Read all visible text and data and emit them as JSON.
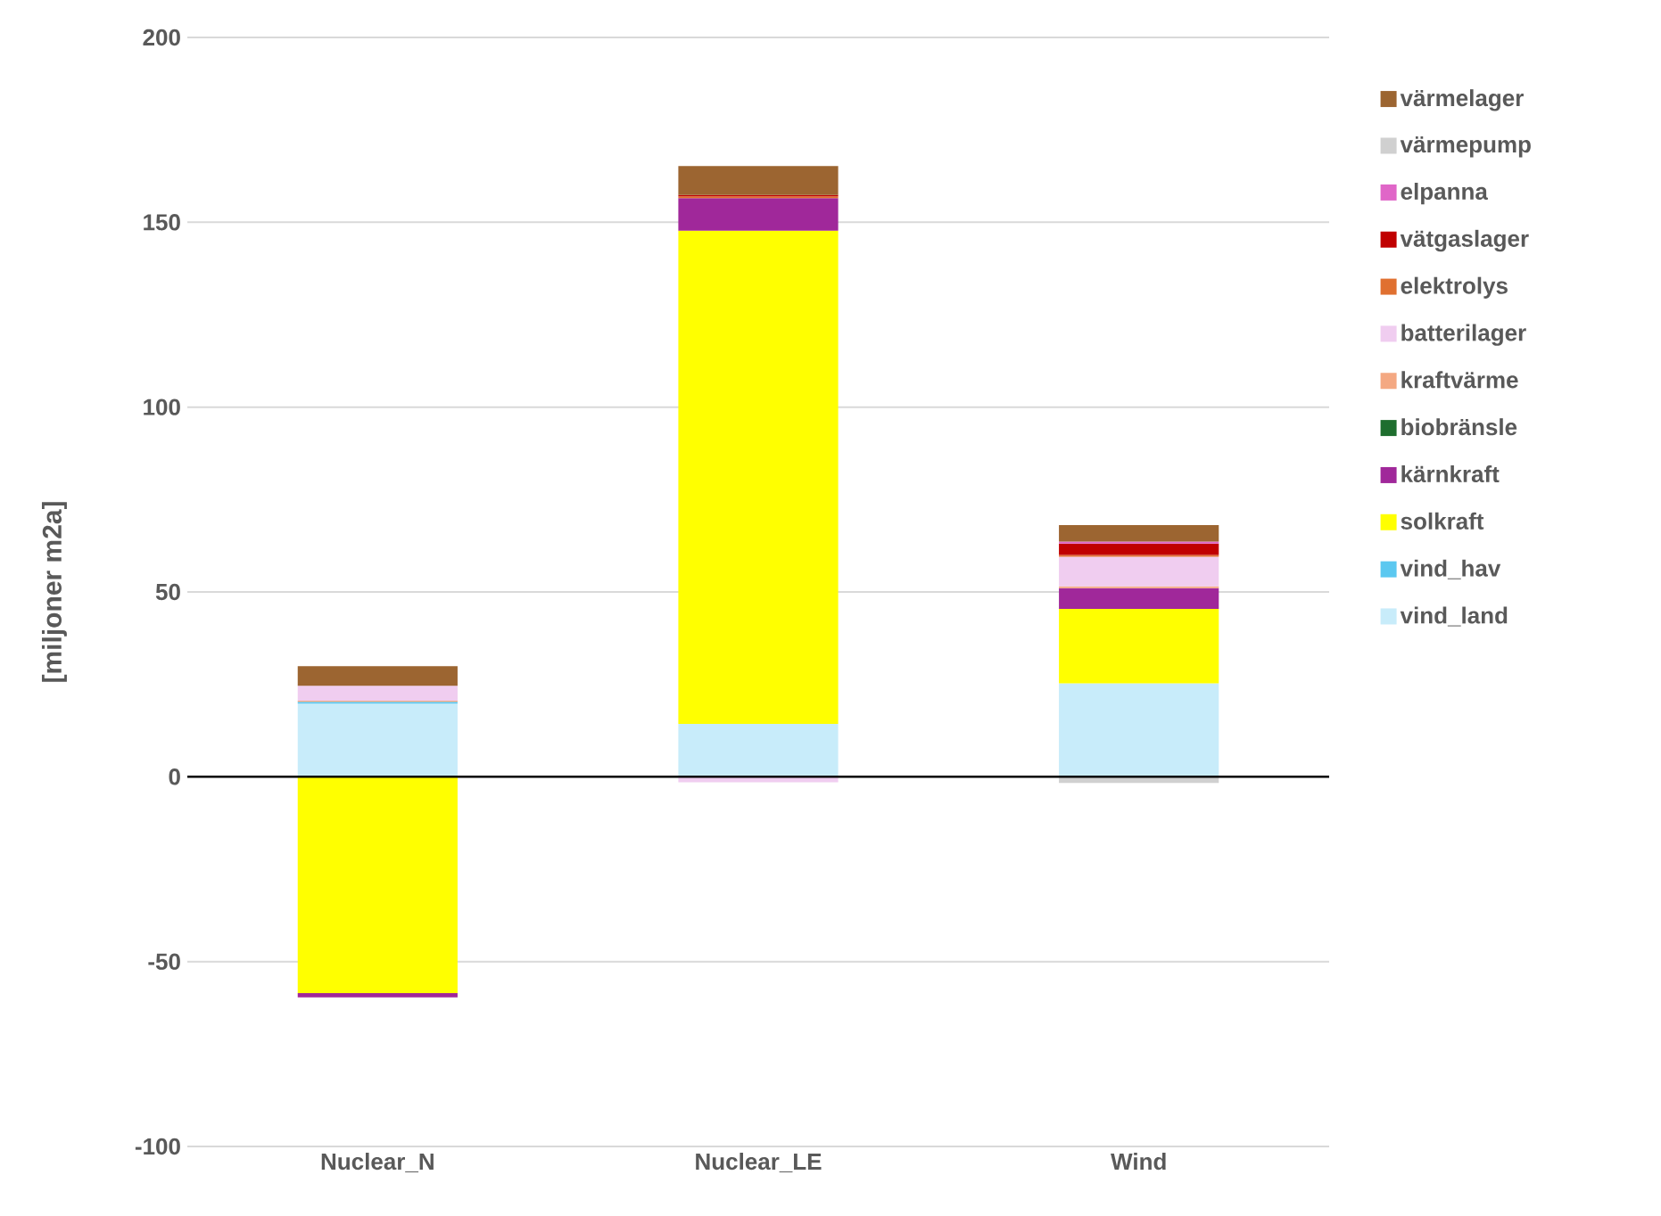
{
  "chart_data": {
    "type": "bar",
    "stacked": true,
    "ylabel": "[miljoner m2a]",
    "categories": [
      "Nuclear_N",
      "Nuclear_LE",
      "Wind"
    ],
    "ylim": [
      -100,
      200
    ],
    "yticks": [
      -100,
      -50,
      0,
      50,
      100,
      150,
      200
    ],
    "grid": "y",
    "legend": "right",
    "series": [
      {
        "name": "vind_land",
        "color": "#c8ecfa",
        "values": [
          19.8,
          14.3,
          25.3
        ]
      },
      {
        "name": "vind_hav",
        "color": "#5bc8f0",
        "values": [
          0.5,
          0,
          0
        ]
      },
      {
        "name": "solkraft",
        "color": "#ffff00",
        "values": [
          -58.5,
          133.4,
          20.1
        ]
      },
      {
        "name": "kärnkraft",
        "color": "#a0289a",
        "values": [
          -1.2,
          8.8,
          5.6
        ]
      },
      {
        "name": "biobränsle",
        "color": "#1e6e2e",
        "values": [
          0,
          0,
          0
        ]
      },
      {
        "name": "kraftvärme",
        "color": "#f4a882",
        "values": [
          0.3,
          0,
          0.5
        ]
      },
      {
        "name": "batterilager",
        "color": "#f0cdf0",
        "values": [
          4,
          -1.5,
          8
        ]
      },
      {
        "name": "elektrolys",
        "color": "#e07030",
        "values": [
          0,
          0.5,
          0.5
        ]
      },
      {
        "name": "vätgaslager",
        "color": "#c00000",
        "values": [
          0,
          0.4,
          3.1
        ]
      },
      {
        "name": "elpanna",
        "color": "#e066c8",
        "values": [
          0,
          0,
          0.5
        ]
      },
      {
        "name": "värmepump",
        "color": "#d0d0d0",
        "values": [
          0,
          0,
          -1.7
        ]
      },
      {
        "name": "värmelager",
        "color": "#9c6531",
        "values": [
          5.3,
          7.8,
          4.5
        ]
      }
    ]
  }
}
